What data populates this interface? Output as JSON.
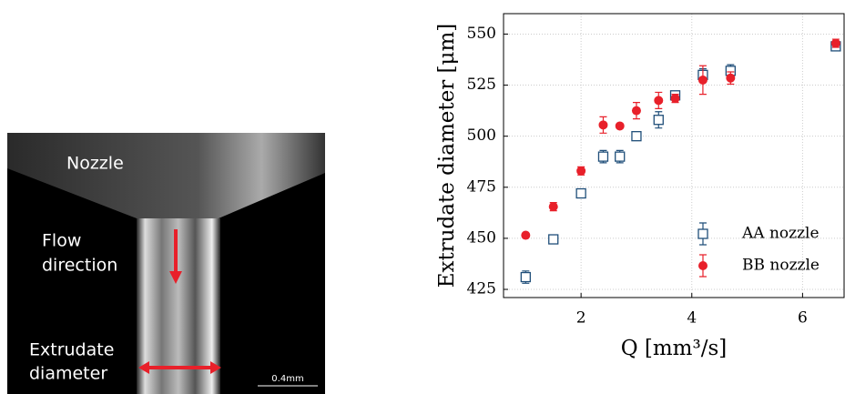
{
  "image": {
    "nozzle": "Nozzle",
    "flow": [
      "Flow",
      "direction"
    ],
    "extrudate": [
      "Extrudate",
      "diameter"
    ],
    "scale_bar": "0.4mm"
  },
  "chart_data": {
    "type": "scatter",
    "x_label": "Q [mm³/s]",
    "y_label": "Extrudate diameter [μm]",
    "xlim": [
      0.6,
      6.75
    ],
    "xticks": [
      2,
      4,
      6
    ],
    "ylim": [
      421,
      560
    ],
    "yticks": [
      425,
      450,
      475,
      500,
      525,
      550
    ],
    "grid": true,
    "legend": "lower right",
    "series": [
      {
        "name": "AA nozzle",
        "color": "#1f4e79",
        "marker": "open-square",
        "x": [
          1.0,
          1.5,
          2.0,
          2.4,
          2.7,
          3.0,
          3.4,
          3.7,
          4.2,
          4.7,
          6.6
        ],
        "values": [
          431,
          449.5,
          472,
          490,
          490,
          500,
          508,
          520,
          530,
          532,
          544
        ],
        "errors": [
          3,
          1,
          1,
          3,
          3,
          1,
          4,
          2,
          3,
          3,
          2
        ]
      },
      {
        "name": "BB nozzle",
        "color": "#e8202a",
        "marker": "circle",
        "x": [
          1.0,
          1.5,
          2.0,
          2.4,
          2.7,
          3.0,
          3.4,
          3.7,
          4.2,
          4.7,
          6.6
        ],
        "values": [
          451.5,
          465.5,
          483,
          505.5,
          505,
          512.5,
          517.5,
          518.5,
          527.5,
          528.5,
          545.5
        ],
        "errors": [
          1,
          2,
          2,
          4,
          1,
          4,
          4,
          2,
          7,
          3,
          2
        ]
      }
    ]
  }
}
